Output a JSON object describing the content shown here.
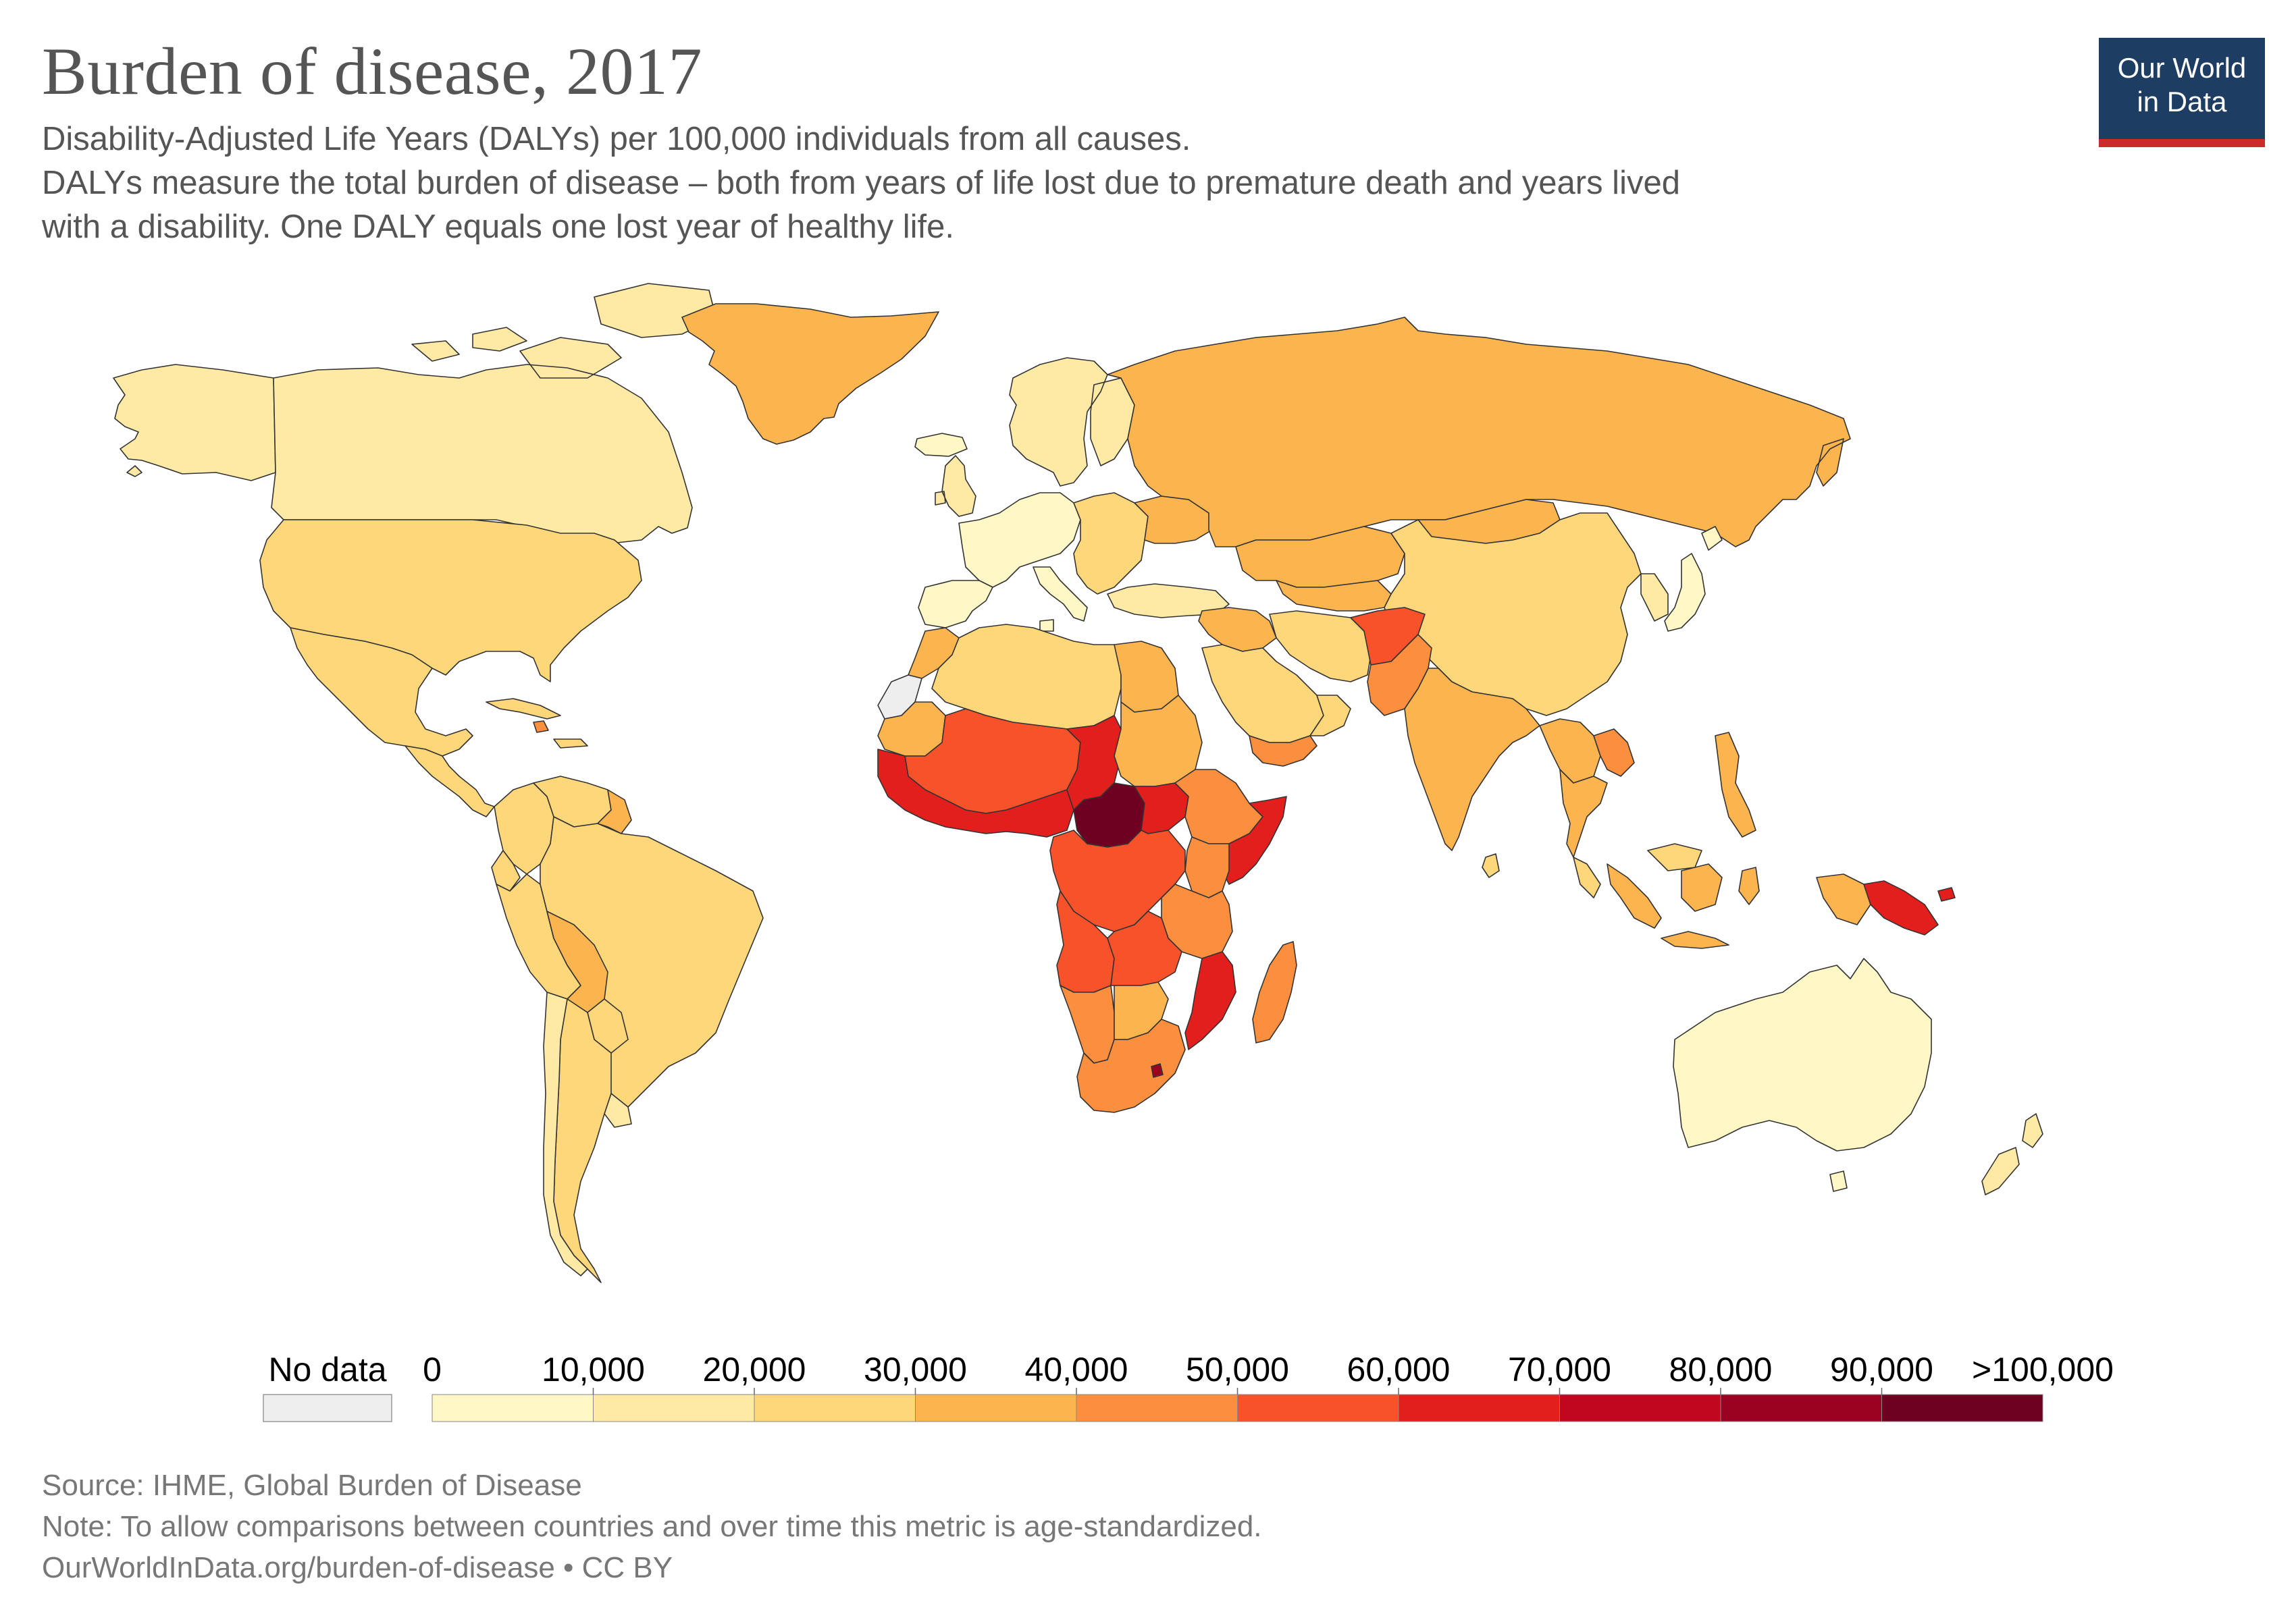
{
  "header": {
    "title": "Burden of disease, 2017",
    "subtitle_lines": [
      "Disability-Adjusted Life Years (DALYs) per 100,000 individuals from all causes.",
      "DALYs measure the total burden of disease – both from years of life lost due to premature death and years lived",
      "with a disability. One DALY equals one lost year of healthy life."
    ]
  },
  "logo": {
    "line1": "Our World",
    "line2": "in Data",
    "bg": "#1d3d63",
    "accent": "#cc2b2b"
  },
  "legend": {
    "no_data_label": "No data",
    "no_data_color": "#eeeeee",
    "tick_labels": [
      "0",
      "10,000",
      "20,000",
      "30,000",
      "40,000",
      "50,000",
      "60,000",
      "70,000",
      "80,000",
      "90,000",
      ">100,000"
    ],
    "bins": [
      {
        "range": [
          0,
          10000
        ],
        "color": "#fff7c5"
      },
      {
        "range": [
          10000,
          20000
        ],
        "color": "#feeaa5"
      },
      {
        "range": [
          20000,
          30000
        ],
        "color": "#fed77b"
      },
      {
        "range": [
          30000,
          40000
        ],
        "color": "#fcb44e"
      },
      {
        "range": [
          40000,
          50000
        ],
        "color": "#fc8f3e"
      },
      {
        "range": [
          50000,
          60000
        ],
        "color": "#f8522b"
      },
      {
        "range": [
          60000,
          70000
        ],
        "color": "#e21f1d"
      },
      {
        "range": [
          70000,
          80000
        ],
        "color": "#c1061f"
      },
      {
        "range": [
          80000,
          90000
        ],
        "color": "#9b0221"
      },
      {
        "range": [
          90000,
          100000
        ],
        "color": "#6e0021"
      }
    ]
  },
  "map": {
    "ocean_color": "#ffffff",
    "border_color": "#333333",
    "regions": [
      {
        "name": "Canada",
        "color": "#feeaa5"
      },
      {
        "name": "Greenland",
        "color": "#fcb44e"
      },
      {
        "name": "Alaska",
        "color": "#feeaa5"
      },
      {
        "name": "United States",
        "color": "#fed77b"
      },
      {
        "name": "Mexico",
        "color": "#fed77b"
      },
      {
        "name": "Central America",
        "color": "#fed77b"
      },
      {
        "name": "Caribbean",
        "color": "#fed77b"
      },
      {
        "name": "Haiti",
        "color": "#fc8f3e"
      },
      {
        "name": "Colombia",
        "color": "#fed77b"
      },
      {
        "name": "Venezuela",
        "color": "#fed77b"
      },
      {
        "name": "Guyana",
        "color": "#fcb44e"
      },
      {
        "name": "Ecuador",
        "color": "#fed77b"
      },
      {
        "name": "Peru",
        "color": "#fed77b"
      },
      {
        "name": "Brazil",
        "color": "#fed77b"
      },
      {
        "name": "Bolivia",
        "color": "#fcb44e"
      },
      {
        "name": "Paraguay",
        "color": "#fed77b"
      },
      {
        "name": "Uruguay",
        "color": "#feeaa5"
      },
      {
        "name": "Argentina",
        "color": "#fed77b"
      },
      {
        "name": "Chile",
        "color": "#feeaa5"
      },
      {
        "name": "Iceland",
        "color": "#fff7c5"
      },
      {
        "name": "United Kingdom",
        "color": "#feeaa5"
      },
      {
        "name": "Western Europe",
        "color": "#fff7c5"
      },
      {
        "name": "Spain & Portugal",
        "color": "#fff7c5"
      },
      {
        "name": "Italy",
        "color": "#fff7c5"
      },
      {
        "name": "Scandinavia",
        "color": "#feeaa5"
      },
      {
        "name": "Eastern Europe",
        "color": "#fed77b"
      },
      {
        "name": "Russia",
        "color": "#fcb44e"
      },
      {
        "name": "Ukraine",
        "color": "#fcb44e"
      },
      {
        "name": "Turkey",
        "color": "#feeaa5"
      },
      {
        "name": "Kazakhstan",
        "color": "#fcb44e"
      },
      {
        "name": "Central Asia",
        "color": "#fcb44e"
      },
      {
        "name": "Mongolia",
        "color": "#fcb44e"
      },
      {
        "name": "China",
        "color": "#fed77b"
      },
      {
        "name": "Korea",
        "color": "#feeaa5"
      },
      {
        "name": "Japan",
        "color": "#fff7c5"
      },
      {
        "name": "Iran",
        "color": "#fed77b"
      },
      {
        "name": "Iraq & Syria",
        "color": "#fcb44e"
      },
      {
        "name": "Saudi Arabia",
        "color": "#fed77b"
      },
      {
        "name": "Yemen",
        "color": "#fc8f3e"
      },
      {
        "name": "Oman",
        "color": "#fed77b"
      },
      {
        "name": "Afghanistan",
        "color": "#f8522b"
      },
      {
        "name": "Pakistan",
        "color": "#fc8f3e"
      },
      {
        "name": "India",
        "color": "#fcb44e"
      },
      {
        "name": "Sri Lanka",
        "color": "#fed77b"
      },
      {
        "name": "Southeast Asia",
        "color": "#fcb44e"
      },
      {
        "name": "Laos",
        "color": "#fc8f3e"
      },
      {
        "name": "Thailand",
        "color": "#fcb44e"
      },
      {
        "name": "Malaysia",
        "color": "#fed77b"
      },
      {
        "name": "Philippines",
        "color": "#fcb44e"
      },
      {
        "name": "Indonesia",
        "color": "#fcb44e"
      },
      {
        "name": "Papua New Guinea",
        "color": "#e21f1d"
      },
      {
        "name": "Australia",
        "color": "#fff7c5"
      },
      {
        "name": "New Zealand",
        "color": "#feeaa5"
      },
      {
        "name": "North Africa",
        "color": "#fed77b"
      },
      {
        "name": "Morocco",
        "color": "#fcb44e"
      },
      {
        "name": "Western Sahara",
        "color": "#eeeeee"
      },
      {
        "name": "Egypt",
        "color": "#fcb44e"
      },
      {
        "name": "Mauritania",
        "color": "#fcb44e"
      },
      {
        "name": "West Africa",
        "color": "#f8522b"
      },
      {
        "name": "West African Coast",
        "color": "#e21f1d"
      },
      {
        "name": "Chad",
        "color": "#e21f1d"
      },
      {
        "name": "Sudan",
        "color": "#fcb44e"
      },
      {
        "name": "Central African Republic",
        "color": "#6e0021"
      },
      {
        "name": "South Sudan",
        "color": "#e21f1d"
      },
      {
        "name": "Ethiopia",
        "color": "#fc8f3e"
      },
      {
        "name": "Somalia",
        "color": "#e21f1d"
      },
      {
        "name": "Kenya",
        "color": "#fc8f3e"
      },
      {
        "name": "Central Africa",
        "color": "#f8522b"
      },
      {
        "name": "Tanzania",
        "color": "#fc8f3e"
      },
      {
        "name": "Angola",
        "color": "#f8522b"
      },
      {
        "name": "Zambia",
        "color": "#f8522b"
      },
      {
        "name": "Mozambique",
        "color": "#e21f1d"
      },
      {
        "name": "Namibia",
        "color": "#fc8f3e"
      },
      {
        "name": "Botswana",
        "color": "#fcb44e"
      },
      {
        "name": "South Africa",
        "color": "#fc8f3e"
      },
      {
        "name": "Lesotho",
        "color": "#9b0221"
      },
      {
        "name": "Madagascar",
        "color": "#fc8f3e"
      }
    ]
  },
  "footer": {
    "source": "Source: IHME, Global Burden of Disease",
    "note": "Note: To allow comparisons between countries and over time this metric is age-standardized.",
    "link": "OurWorldInData.org/burden-of-disease • CC BY"
  }
}
